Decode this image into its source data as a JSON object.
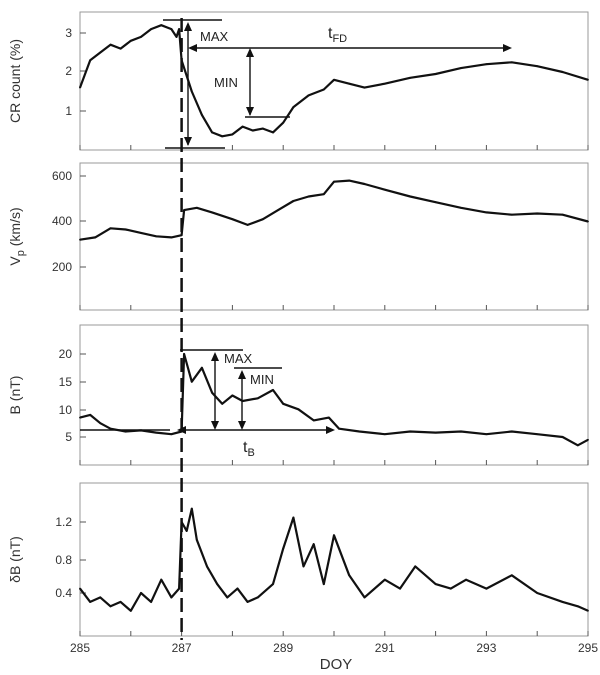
{
  "figure": {
    "xlabel": "DOY",
    "xticks": [
      "285",
      "287",
      "289",
      "291",
      "293",
      "295"
    ],
    "colors": {
      "line": "#111111",
      "frame": "#999999",
      "text": "#333333",
      "accent_tick": "#c8a800"
    }
  },
  "chart_data": [
    {
      "type": "line",
      "panel": "cr",
      "ylabel": "CR count (%)",
      "yticks": [
        "3",
        "2",
        "1"
      ],
      "accent_tick": "1",
      "xlim": [
        285,
        295
      ],
      "ylim": [
        0.0,
        3.5
      ],
      "annotations": {
        "max": "MAX",
        "min": "MIN",
        "tfd_main": "t",
        "tfd_sub": "FD"
      },
      "series": [
        {
          "x": [
            285.0,
            285.2,
            285.4,
            285.6,
            285.8,
            286.0,
            286.2,
            286.4,
            286.6,
            286.8,
            286.9,
            286.95,
            287.0,
            287.1,
            287.2,
            287.4,
            287.6,
            287.8,
            288.0,
            288.2,
            288.4,
            288.6,
            288.8,
            289.0,
            289.2,
            289.5,
            289.8,
            290.0,
            290.3,
            290.6,
            291.0,
            291.5,
            292.0,
            292.5,
            293.0,
            293.5,
            294.0,
            294.5,
            295.0
          ],
          "y": [
            1.6,
            2.3,
            2.5,
            2.7,
            2.6,
            2.8,
            2.9,
            3.1,
            3.2,
            3.1,
            2.9,
            3.1,
            2.3,
            1.9,
            1.5,
            0.9,
            0.45,
            0.35,
            0.4,
            0.6,
            0.5,
            0.55,
            0.45,
            0.7,
            1.1,
            1.4,
            1.55,
            1.8,
            1.7,
            1.6,
            1.7,
            1.85,
            1.95,
            2.1,
            2.2,
            2.25,
            2.15,
            2.0,
            1.8
          ]
        }
      ]
    },
    {
      "type": "line",
      "panel": "vp",
      "ylabel_main": "V",
      "ylabel_sub": "p",
      "ylabel_rest": " (km/s)",
      "yticks": [
        "600",
        "400",
        "200"
      ],
      "xlim": [
        285,
        295
      ],
      "ylim": [
        0,
        660
      ],
      "series": [
        {
          "x": [
            285.0,
            285.3,
            285.6,
            285.9,
            286.2,
            286.5,
            286.8,
            287.0,
            287.05,
            287.3,
            287.6,
            288.0,
            288.3,
            288.6,
            288.9,
            289.2,
            289.5,
            289.8,
            290.0,
            290.3,
            290.6,
            291.0,
            291.5,
            292.0,
            292.5,
            293.0,
            293.5,
            294.0,
            294.5,
            295.0
          ],
          "y": [
            320,
            330,
            370,
            365,
            350,
            335,
            330,
            340,
            450,
            460,
            440,
            410,
            385,
            410,
            450,
            490,
            510,
            520,
            575,
            580,
            565,
            540,
            510,
            485,
            460,
            440,
            430,
            435,
            430,
            400
          ]
        }
      ]
    },
    {
      "type": "line",
      "panel": "b",
      "ylabel": "B (nT)",
      "yticks": [
        "20",
        "15",
        "10",
        "5"
      ],
      "xlim": [
        285,
        295
      ],
      "ylim": [
        0,
        23.5
      ],
      "annotations": {
        "max": "MAX",
        "min": "MIN",
        "tb_main": "t",
        "tb_sub": "B"
      },
      "series": [
        {
          "x": [
            285.0,
            285.2,
            285.4,
            285.6,
            285.9,
            286.2,
            286.5,
            286.8,
            287.0,
            287.05,
            287.2,
            287.4,
            287.6,
            287.8,
            288.0,
            288.2,
            288.5,
            288.8,
            289.0,
            289.3,
            289.6,
            289.9,
            290.1,
            290.5,
            291.0,
            291.5,
            292.0,
            292.5,
            293.0,
            293.5,
            294.0,
            294.5,
            294.8,
            295.0
          ],
          "y": [
            8.5,
            9.0,
            7.5,
            6.5,
            6.0,
            6.2,
            5.8,
            5.5,
            6.0,
            20.0,
            15.0,
            17.5,
            13.0,
            11.0,
            12.5,
            11.5,
            12.0,
            13.5,
            11.0,
            10.0,
            8.0,
            8.5,
            6.5,
            6.0,
            5.5,
            6.0,
            5.8,
            6.0,
            5.5,
            6.0,
            5.5,
            5.0,
            3.5,
            4.5
          ]
        }
      ]
    },
    {
      "type": "line",
      "panel": "db",
      "ylabel": "δB (nT)",
      "yticks": [
        "1.2",
        "0.8",
        "0.4"
      ],
      "xlim": [
        285,
        295
      ],
      "ylim": [
        0.1,
        1.55
      ],
      "series": [
        {
          "x": [
            285.0,
            285.2,
            285.4,
            285.6,
            285.8,
            286.0,
            286.2,
            286.4,
            286.6,
            286.8,
            286.95,
            287.0,
            287.1,
            287.2,
            287.3,
            287.5,
            287.7,
            287.9,
            288.1,
            288.3,
            288.5,
            288.8,
            289.0,
            289.2,
            289.4,
            289.6,
            289.8,
            290.0,
            290.3,
            290.6,
            291.0,
            291.3,
            291.6,
            292.0,
            292.3,
            292.6,
            293.0,
            293.5,
            294.0,
            294.5,
            294.8,
            295.0
          ],
          "y": [
            0.45,
            0.3,
            0.35,
            0.25,
            0.3,
            0.2,
            0.4,
            0.3,
            0.55,
            0.35,
            0.45,
            1.2,
            1.1,
            1.35,
            1.0,
            0.7,
            0.5,
            0.35,
            0.45,
            0.3,
            0.35,
            0.5,
            0.9,
            1.25,
            0.7,
            0.95,
            0.5,
            1.05,
            0.6,
            0.35,
            0.55,
            0.45,
            0.7,
            0.5,
            0.45,
            0.55,
            0.45,
            0.6,
            0.4,
            0.3,
            0.25,
            0.2
          ]
        }
      ]
    }
  ]
}
